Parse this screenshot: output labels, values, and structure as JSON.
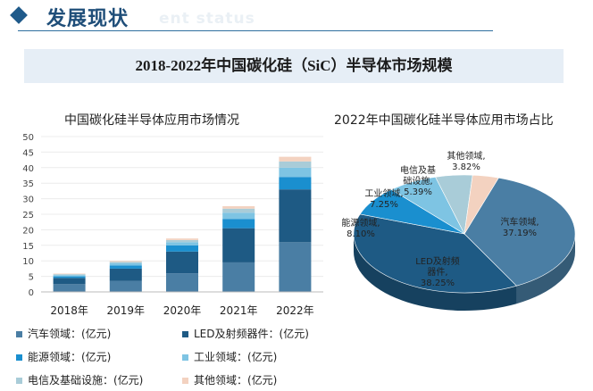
{
  "header": {
    "title": "发展现状",
    "subtitle": "ent status"
  },
  "banner": {
    "title": "2018-2022年中国碳化硅（SiC）半导体市场规模"
  },
  "colors": {
    "automotive": "#4a7ea4",
    "led_rf": "#1e5a84",
    "energy": "#1a8fcf",
    "industrial": "#7ec4e3",
    "telecom": "#a9ccd8",
    "other": "#f3d2c0"
  },
  "chart_data": [
    {
      "type": "bar",
      "stacked": true,
      "title": "中国碳化硅半导体应用市场情况",
      "categories": [
        "2018年",
        "2019年",
        "2020年",
        "2021年",
        "2022年"
      ],
      "ylim": [
        0,
        50
      ],
      "yticks": [
        "0",
        "5",
        "10",
        "15",
        "20",
        "25",
        "30",
        "35",
        "40",
        "45",
        "50"
      ],
      "series": [
        {
          "name": "汽车领域：(亿元)",
          "color_key": "automotive",
          "values": [
            2.5,
            3.5,
            6.0,
            9.5,
            16.0
          ]
        },
        {
          "name": "LED及射频器件：(亿元)",
          "color_key": "led_rf",
          "values": [
            2.0,
            4.0,
            7.0,
            11.0,
            17.0
          ]
        },
        {
          "name": "能源领域：(亿元)",
          "color_key": "energy",
          "values": [
            0.5,
            1.0,
            2.0,
            3.0,
            4.0
          ]
        },
        {
          "name": "工业领域：(亿元)",
          "color_key": "industrial",
          "values": [
            0.4,
            0.7,
            1.0,
            2.0,
            3.0
          ]
        },
        {
          "name": "电信及基础设施：(亿元)",
          "color_key": "telecom",
          "values": [
            0.3,
            0.5,
            0.7,
            1.3,
            2.0
          ]
        },
        {
          "name": "其他领域：(亿元)",
          "color_key": "other",
          "values": [
            0.2,
            0.3,
            0.5,
            0.8,
            1.5
          ]
        }
      ]
    },
    {
      "type": "pie",
      "title": "2022年中国碳化硅半导体应用市场占比",
      "slices": [
        {
          "name": "汽车领域",
          "label": "汽车领域,",
          "pct_text": "37.19%",
          "value": 37.19,
          "color_key": "automotive"
        },
        {
          "name": "LED及射频器件",
          "label": "LED及射频\n器件,",
          "pct_text": "38.25%",
          "value": 38.25,
          "color_key": "led_rf"
        },
        {
          "name": "能源领域",
          "label": "能源领域,",
          "pct_text": "8.10%",
          "value": 8.1,
          "color_key": "energy"
        },
        {
          "name": "工业领域",
          "label": "工业领域,",
          "pct_text": "7.25%",
          "value": 7.25,
          "color_key": "industrial"
        },
        {
          "name": "电信及基础设施",
          "label": "电信及基\n础设施,",
          "pct_text": "5.39%",
          "value": 5.39,
          "color_key": "telecom"
        },
        {
          "name": "其他领域",
          "label": "其他领域,",
          "pct_text": "3.82%",
          "value": 3.82,
          "color_key": "other"
        }
      ]
    }
  ]
}
